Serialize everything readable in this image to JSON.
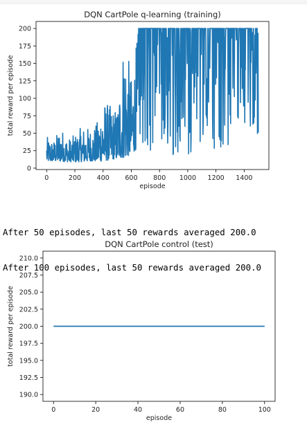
{
  "output_log": [
    "After 50 episodes, last 50 rewards averaged 200.0",
    "After 100 episodes, last 50 rewards averaged 200.0"
  ],
  "colors": {
    "series": "#1f77b4"
  },
  "chart_data": [
    {
      "type": "line",
      "title": "DQN CartPole q-learning (training)",
      "xlabel": "episode",
      "ylabel": "total reward per episode",
      "xlim": [
        -75,
        1575
      ],
      "ylim": [
        -2,
        210
      ],
      "xticks": [
        0,
        200,
        400,
        600,
        800,
        1000,
        1200,
        1400
      ],
      "yticks": [
        0,
        25,
        50,
        75,
        100,
        125,
        150,
        175,
        200
      ],
      "grid": false,
      "series": [
        {
          "x_range": [
            0,
            1500
          ],
          "envelope": [
            [
              0,
              10,
              45
            ],
            [
              50,
              10,
              40
            ],
            [
              100,
              10,
              60
            ],
            [
              150,
              9,
              42
            ],
            [
              200,
              9,
              48
            ],
            [
              250,
              9,
              60
            ],
            [
              300,
              10,
              58
            ],
            [
              350,
              10,
              62
            ],
            [
              400,
              10,
              100
            ],
            [
              450,
              12,
              90
            ],
            [
              500,
              14,
              85
            ],
            [
              550,
              15,
              200
            ],
            [
              600,
              20,
              130
            ],
            [
              650,
              30,
              200
            ],
            [
              700,
              25,
              200
            ],
            [
              750,
              22,
              200
            ],
            [
              800,
              20,
              200
            ],
            [
              850,
              18,
              200
            ],
            [
              900,
              16,
              200
            ],
            [
              950,
              20,
              200
            ],
            [
              1000,
              18,
              200
            ],
            [
              1050,
              25,
              200
            ],
            [
              1100,
              30,
              200
            ],
            [
              1150,
              20,
              200
            ],
            [
              1200,
              25,
              200
            ],
            [
              1250,
              30,
              200
            ],
            [
              1300,
              35,
              200
            ],
            [
              1350,
              40,
              200
            ],
            [
              1400,
              45,
              200
            ],
            [
              1450,
              60,
              200
            ],
            [
              1500,
              40,
              200
            ]
          ]
        }
      ]
    },
    {
      "type": "line",
      "title": "DQN CartPole control (test)",
      "xlabel": "episode",
      "ylabel": "total reward per episode",
      "xlim": [
        -5,
        105
      ],
      "ylim": [
        189,
        211
      ],
      "xticks": [
        0,
        20,
        40,
        60,
        80,
        100
      ],
      "yticks": [
        190.0,
        192.5,
        195.0,
        197.5,
        200.0,
        202.5,
        205.0,
        207.5,
        210.0
      ],
      "grid": false,
      "series": [
        {
          "x": [
            0,
            100
          ],
          "y": [
            200,
            200
          ]
        }
      ]
    }
  ]
}
